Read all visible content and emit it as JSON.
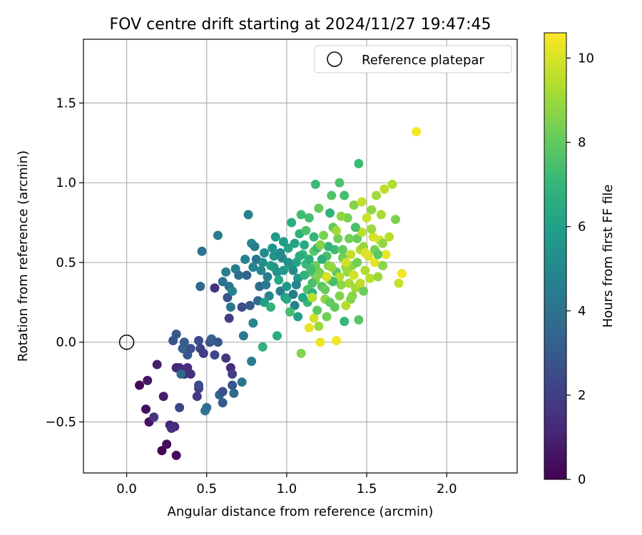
{
  "chart_data": {
    "type": "scatter",
    "title": "FOV centre drift starting at 2024/11/27 19:47:45",
    "xlabel": "Angular distance from reference (arcmin)",
    "ylabel": "Rotation from reference (arcmin)",
    "xlim": [
      -0.27,
      2.44
    ],
    "ylim": [
      -0.82,
      1.9
    ],
    "x_ticks": [
      0.0,
      0.5,
      1.0,
      1.5,
      2.0
    ],
    "x_tick_labels": [
      "0.0",
      "0.5",
      "1.0",
      "1.5",
      "2.0"
    ],
    "y_ticks": [
      -0.5,
      0.0,
      0.5,
      1.0,
      1.5
    ],
    "y_tick_labels": [
      "−0.5",
      "0.0",
      "0.5",
      "1.0",
      "1.5"
    ],
    "grid": true,
    "legend": {
      "placement": "top-right",
      "entries": [
        "Reference platepar"
      ]
    },
    "reference_point": {
      "x": 0.0,
      "y": 0.0,
      "label": "Reference platepar"
    },
    "colorbar": {
      "label": "Hours from first FF file",
      "range": [
        0,
        10.6
      ],
      "ticks": [
        0,
        2,
        4,
        6,
        8,
        10
      ],
      "tick_labels": [
        "0",
        "2",
        "4",
        "6",
        "8",
        "10"
      ],
      "colormap": "viridis"
    },
    "colors": {
      "viridis": [
        "#440154",
        "#482878",
        "#3e4989",
        "#31688e",
        "#26828e",
        "#1f9e89",
        "#35b779",
        "#6ece58",
        "#b5de2b",
        "#fde725"
      ]
    },
    "points": [
      [
        0.08,
        -0.27,
        0.2
      ],
      [
        0.12,
        -0.42,
        0.4
      ],
      [
        0.14,
        -0.5,
        0.5
      ],
      [
        0.13,
        -0.24,
        0.6
      ],
      [
        0.22,
        -0.68,
        0.1
      ],
      [
        0.25,
        -0.64,
        0.3
      ],
      [
        0.31,
        -0.71,
        0.2
      ],
      [
        0.27,
        -0.52,
        1.0
      ],
      [
        0.3,
        -0.53,
        1.3
      ],
      [
        0.28,
        -0.54,
        1.5
      ],
      [
        0.17,
        -0.47,
        1.7
      ],
      [
        0.19,
        -0.14,
        0.9
      ],
      [
        0.23,
        -0.34,
        0.8
      ],
      [
        0.31,
        -0.16,
        1.1
      ],
      [
        0.33,
        -0.16,
        1.3
      ],
      [
        0.36,
        -0.2,
        1.0
      ],
      [
        0.38,
        -0.16,
        1.4
      ],
      [
        0.4,
        -0.2,
        1.6
      ],
      [
        0.33,
        -0.41,
        2.2
      ],
      [
        0.44,
        -0.34,
        1.8
      ],
      [
        0.45,
        -0.29,
        2.0
      ],
      [
        0.45,
        -0.27,
        2.5
      ],
      [
        0.29,
        0.01,
        2.8
      ],
      [
        0.31,
        0.05,
        3.0
      ],
      [
        0.35,
        -0.04,
        3.4
      ],
      [
        0.36,
        -0.0,
        3.2
      ],
      [
        0.34,
        -0.2,
        3.6
      ],
      [
        0.38,
        -0.08,
        3.0
      ],
      [
        0.4,
        -0.04,
        2.6
      ],
      [
        0.45,
        0.01,
        2.4
      ],
      [
        0.46,
        -0.04,
        2.1
      ],
      [
        0.48,
        -0.07,
        1.9
      ],
      [
        0.52,
        0.0,
        2.7
      ],
      [
        0.53,
        0.02,
        3.3
      ],
      [
        0.55,
        -0.08,
        2.3
      ],
      [
        0.49,
        -0.43,
        4.2
      ],
      [
        0.5,
        -0.41,
        3.8
      ],
      [
        0.58,
        -0.33,
        3.5
      ],
      [
        0.6,
        -0.31,
        2.6
      ],
      [
        0.6,
        -0.38,
        3.0
      ],
      [
        0.66,
        -0.27,
        2.8
      ],
      [
        0.67,
        -0.32,
        3.6
      ],
      [
        0.62,
        -0.1,
        1.8
      ],
      [
        0.65,
        -0.16,
        1.4
      ],
      [
        0.66,
        -0.2,
        2.0
      ],
      [
        0.72,
        -0.25,
        4.0
      ],
      [
        0.73,
        0.04,
        4.2
      ],
      [
        0.78,
        -0.12,
        4.4
      ],
      [
        0.57,
        0.0,
        2.9
      ],
      [
        0.47,
        0.57,
        4.0
      ],
      [
        0.46,
        0.35,
        3.5
      ],
      [
        0.55,
        0.34,
        1.6
      ],
      [
        0.57,
        0.67,
        4.5
      ],
      [
        0.6,
        0.38,
        3.9
      ],
      [
        0.62,
        0.44,
        4.6
      ],
      [
        0.64,
        0.35,
        4.0
      ],
      [
        0.65,
        0.22,
        4.2
      ],
      [
        0.63,
        0.28,
        2.8
      ],
      [
        0.64,
        0.15,
        2.0
      ],
      [
        0.66,
        0.32,
        4.8
      ],
      [
        0.68,
        0.46,
        4.4
      ],
      [
        0.7,
        0.42,
        3.8
      ],
      [
        0.72,
        0.22,
        2.5
      ],
      [
        0.74,
        0.52,
        4.6
      ],
      [
        0.75,
        0.42,
        3.4
      ],
      [
        0.76,
        0.8,
        4.7
      ],
      [
        0.77,
        0.23,
        3.0
      ],
      [
        0.78,
        0.62,
        5.0
      ],
      [
        0.79,
        0.47,
        4.8
      ],
      [
        0.8,
        0.6,
        4.4
      ],
      [
        0.81,
        0.52,
        4.1
      ],
      [
        0.82,
        0.26,
        3.6
      ],
      [
        0.83,
        0.35,
        3.7
      ],
      [
        0.84,
        0.45,
        4.9
      ],
      [
        0.85,
        0.5,
        5.2
      ],
      [
        0.86,
        0.56,
        5.0
      ],
      [
        0.87,
        0.36,
        4.3
      ],
      [
        0.88,
        0.41,
        4.6
      ],
      [
        0.89,
        0.29,
        4.9
      ],
      [
        0.9,
        0.48,
        6.1
      ],
      [
        0.91,
        0.59,
        5.5
      ],
      [
        0.92,
        0.54,
        5.4
      ],
      [
        0.93,
        0.66,
        5.8
      ],
      [
        0.94,
        0.44,
        5.3
      ],
      [
        0.96,
        0.32,
        4.5
      ],
      [
        0.97,
        0.53,
        5.0
      ],
      [
        0.98,
        0.45,
        5.7
      ],
      [
        0.99,
        0.28,
        5.9
      ],
      [
        1.0,
        0.27,
        6.4
      ],
      [
        1.01,
        0.59,
        6.2
      ],
      [
        1.02,
        0.48,
        6.6
      ],
      [
        1.03,
        0.75,
        6.6
      ],
      [
        1.04,
        0.45,
        5.1
      ],
      [
        1.05,
        0.23,
        4.8
      ],
      [
        1.06,
        0.5,
        6.1
      ],
      [
        1.07,
        0.4,
        5.8
      ],
      [
        1.08,
        0.68,
        6.8
      ],
      [
        1.09,
        0.8,
        7.3
      ],
      [
        1.1,
        0.55,
        7.0
      ],
      [
        1.11,
        0.61,
        6.4
      ],
      [
        1.12,
        0.49,
        7.1
      ],
      [
        1.13,
        0.33,
        7.6
      ],
      [
        1.14,
        0.78,
        7.4
      ],
      [
        1.15,
        0.44,
        7.7
      ],
      [
        1.16,
        0.31,
        6.9
      ],
      [
        1.17,
        0.57,
        7.9
      ],
      [
        1.18,
        0.48,
        8.2
      ],
      [
        1.19,
        0.59,
        7.2
      ],
      [
        1.2,
        0.44,
        8.1
      ],
      [
        1.21,
        0.43,
        8.5
      ],
      [
        1.22,
        0.35,
        7.8
      ],
      [
        1.23,
        0.67,
        8.4
      ],
      [
        1.24,
        0.27,
        8.8
      ],
      [
        1.25,
        0.54,
        7.5
      ],
      [
        1.26,
        0.48,
        8.6
      ],
      [
        1.27,
        0.39,
        9.0
      ],
      [
        1.28,
        0.92,
        7.7
      ],
      [
        1.29,
        0.72,
        8.0
      ],
      [
        1.3,
        0.58,
        7.3
      ],
      [
        1.31,
        0.44,
        7.9
      ],
      [
        1.32,
        0.65,
        8.3
      ],
      [
        1.33,
        1.0,
        7.6
      ],
      [
        1.34,
        0.36,
        8.7
      ],
      [
        1.35,
        0.53,
        8.2
      ],
      [
        1.36,
        0.92,
        7.4
      ],
      [
        1.37,
        0.47,
        8.9
      ],
      [
        1.38,
        0.78,
        8.4
      ],
      [
        1.39,
        0.37,
        9.2
      ],
      [
        1.4,
        0.55,
        9.6
      ],
      [
        1.41,
        0.48,
        8.8
      ],
      [
        1.42,
        0.86,
        8.6
      ],
      [
        1.43,
        0.34,
        9.1
      ],
      [
        1.44,
        0.65,
        8.1
      ],
      [
        1.45,
        1.12,
        7.2
      ],
      [
        1.46,
        0.58,
        9.4
      ],
      [
        1.47,
        0.88,
        9.7
      ],
      [
        1.48,
        0.6,
        8.9
      ],
      [
        1.49,
        0.45,
        9.3
      ],
      [
        1.5,
        0.78,
        9.8
      ],
      [
        1.51,
        0.54,
        10.0
      ],
      [
        1.52,
        0.4,
        9.5
      ],
      [
        1.53,
        0.83,
        8.8
      ],
      [
        1.54,
        0.66,
        9.9
      ],
      [
        1.55,
        0.5,
        10.2
      ],
      [
        1.56,
        0.92,
        9.1
      ],
      [
        1.57,
        0.41,
        9.0
      ],
      [
        1.58,
        0.64,
        10.0
      ],
      [
        1.59,
        0.8,
        9.2
      ],
      [
        1.6,
        0.48,
        8.7
      ],
      [
        1.61,
        0.96,
        9.6
      ],
      [
        1.62,
        0.55,
        10.3
      ],
      [
        1.64,
        0.66,
        9.4
      ],
      [
        1.66,
        0.99,
        9.3
      ],
      [
        1.68,
        0.77,
        8.5
      ],
      [
        1.7,
        0.37,
        9.7
      ],
      [
        1.72,
        0.43,
        10.4
      ],
      [
        1.81,
        1.32,
        10.5
      ],
      [
        1.31,
        0.01,
        10.4
      ],
      [
        1.21,
        0.0,
        10.3
      ],
      [
        1.09,
        -0.07,
        8.6
      ],
      [
        1.14,
        0.09,
        10.2
      ],
      [
        1.17,
        0.15,
        9.9
      ],
      [
        1.2,
        0.1,
        9.0
      ],
      [
        1.02,
        0.19,
        7.4
      ],
      [
        1.07,
        0.16,
        6.0
      ],
      [
        1.13,
        0.25,
        7.1
      ],
      [
        1.19,
        0.2,
        7.9
      ],
      [
        1.25,
        0.16,
        8.3
      ],
      [
        1.3,
        0.22,
        8.0
      ],
      [
        1.36,
        0.13,
        7.0
      ],
      [
        1.4,
        0.27,
        8.5
      ],
      [
        1.45,
        0.14,
        7.8
      ],
      [
        0.94,
        0.04,
        6.6
      ],
      [
        0.85,
        -0.03,
        6.8
      ],
      [
        0.79,
        0.12,
        4.9
      ],
      [
        0.86,
        0.25,
        6.0
      ],
      [
        0.9,
        0.22,
        6.9
      ],
      [
        0.95,
        0.39,
        6.3
      ],
      [
        1.0,
        0.35,
        5.6
      ],
      [
        1.04,
        0.3,
        4.4
      ],
      [
        1.06,
        0.36,
        4.7
      ],
      [
        1.11,
        0.42,
        6.8
      ],
      [
        1.15,
        0.46,
        7.3
      ],
      [
        1.18,
        0.39,
        8.6
      ],
      [
        1.22,
        0.52,
        6.7
      ],
      [
        1.26,
        0.6,
        7.0
      ],
      [
        1.28,
        0.47,
        8.9
      ],
      [
        1.33,
        0.41,
        9.4
      ],
      [
        1.35,
        0.58,
        8.0
      ],
      [
        1.38,
        0.44,
        9.0
      ],
      [
        1.41,
        0.29,
        8.7
      ],
      [
        1.44,
        0.5,
        8.3
      ],
      [
        1.47,
        0.69,
        9.5
      ],
      [
        1.48,
        0.32,
        8.2
      ],
      [
        1.53,
        0.71,
        9.0
      ],
      [
        1.55,
        0.58,
        8.4
      ],
      [
        1.57,
        0.55,
        7.9
      ],
      [
        1.6,
        0.62,
        8.8
      ],
      [
        1.27,
        0.81,
        6.8
      ],
      [
        1.2,
        0.84,
        8.1
      ],
      [
        1.18,
        0.99,
        7.2
      ],
      [
        1.12,
        0.7,
        7.6
      ],
      [
        1.08,
        0.54,
        6.5
      ],
      [
        1.05,
        0.62,
        6.1
      ],
      [
        1.01,
        0.5,
        5.4
      ],
      [
        0.98,
        0.63,
        5.9
      ],
      [
        0.96,
        0.56,
        5.1
      ],
      [
        0.92,
        0.47,
        5.6
      ],
      [
        1.43,
        0.72,
        7.5
      ],
      [
        1.39,
        0.65,
        8.3
      ],
      [
        1.34,
        0.79,
        8.8
      ],
      [
        1.31,
        0.7,
        9.1
      ],
      [
        1.29,
        0.38,
        7.4
      ],
      [
        1.24,
        0.33,
        8.1
      ],
      [
        1.21,
        0.61,
        8.6
      ],
      [
        1.17,
        0.66,
        7.0
      ],
      [
        1.14,
        0.52,
        6.7
      ],
      [
        1.1,
        0.28,
        6.2
      ],
      [
        1.16,
        0.37,
        7.5
      ],
      [
        1.27,
        0.25,
        8.0
      ],
      [
        1.33,
        0.29,
        8.6
      ],
      [
        1.37,
        0.23,
        9.4
      ],
      [
        1.42,
        0.42,
        9.9
      ],
      [
        1.46,
        0.37,
        9.6
      ],
      [
        1.49,
        0.56,
        10.1
      ],
      [
        1.37,
        0.5,
        9.8
      ],
      [
        1.25,
        0.41,
        10.0
      ],
      [
        1.16,
        0.28,
        9.5
      ]
    ]
  }
}
